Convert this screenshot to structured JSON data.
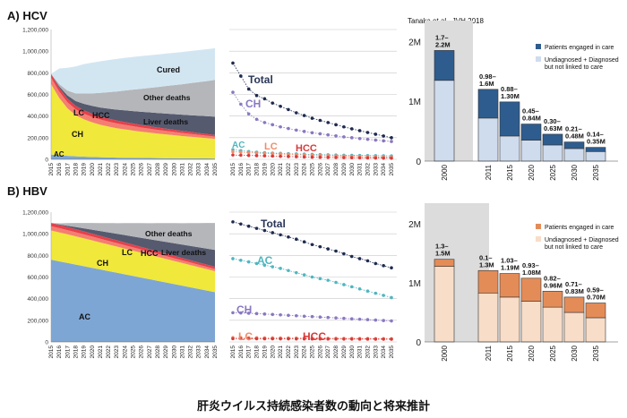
{
  "caption": "肝炎ウイルス持続感染者数の動向と将来推計",
  "colors": {
    "cured": "#d2e6f2",
    "other_deaths": "#b4b6ba",
    "liver_deaths": "#555a6e",
    "hcc": "#e8404a",
    "lc": "#f47e72",
    "ch": "#f0e83a",
    "ac": "#7ea6d4",
    "total_hcv": "#1e2a4e",
    "ch_line": "#8a78c0",
    "ac_line": "#4fb6c0",
    "lc_line": "#f08c6a",
    "hcc_line": "#d83a3a",
    "hcv_engaged": "#2e5c8e",
    "hcv_undiag": "#cfdcee",
    "hbv_engaged": "#e48c58",
    "hbv_undiag": "#f8ddc8",
    "shade": "#dcdcdc"
  },
  "panel_a_title": "A) HCV",
  "panel_b_title": "B) HBV",
  "source_note": "Tanaka et al., JVH 2018",
  "area_labels_hcv": {
    "cured": "Cured",
    "other": "Other deaths",
    "liver": "Liver deaths",
    "lc": "LC",
    "hcc": "HCC",
    "ch": "CH",
    "ac": "AC"
  },
  "area_labels_hbv": {
    "other": "Other deaths",
    "liver": "Liver deaths",
    "lc": "LC",
    "hcc": "HCC",
    "ch": "CH",
    "ac": "AC"
  },
  "line_labels_hcv": {
    "total": "Total",
    "ch": "CH",
    "ac": "AC",
    "lc": "LC",
    "hcc": "HCC"
  },
  "line_labels_hbv": {
    "total": "Total",
    "ac": "AC",
    "ch": "CH",
    "lc": "LC",
    "hcc": "HCC"
  },
  "legend_hcv": {
    "engaged": "Patients engaged in care",
    "undiag_1": "Undiagnosed + Diagnosed",
    "undiag_2": "but not linked to care"
  },
  "legend_hbv": {
    "engaged": "Patients engaged in care",
    "undiag_1": "Undiagnosed + Diagnosed",
    "undiag_2": "but not linked to care"
  },
  "chart_data": [
    {
      "type": "area",
      "title": "A) HCV",
      "x": [
        2015,
        2016,
        2017,
        2018,
        2019,
        2020,
        2021,
        2022,
        2023,
        2024,
        2025,
        2026,
        2027,
        2028,
        2029,
        2030,
        2031,
        2032,
        2033,
        2034,
        2035
      ],
      "yticks": [
        "0",
        "200,000",
        "400,000",
        "600,000",
        "800,000",
        "1,000,000",
        "1,200,000"
      ],
      "ylim": [
        0,
        1200000
      ],
      "series_bottom_to_top": [
        {
          "name": "AC",
          "values": [
            45000,
            38000,
            32000,
            28000,
            25000,
            22000,
            20000,
            18000,
            16000,
            15000,
            14000,
            13000,
            12000,
            11000,
            10500,
            10000,
            9500,
            9000,
            8500,
            8000,
            7500
          ]
        },
        {
          "name": "CH",
          "values": [
            650000,
            530000,
            440000,
            380000,
            345000,
            320000,
            300000,
            285000,
            272000,
            262000,
            252000,
            243000,
            235000,
            227000,
            220000,
            213000,
            206000,
            200000,
            194000,
            188000,
            182000
          ]
        },
        {
          "name": "LC",
          "values": [
            60000,
            58000,
            56000,
            54000,
            52000,
            50000,
            48000,
            46000,
            44000,
            42000,
            40000,
            38000,
            36000,
            34000,
            32000,
            30000,
            28000,
            26000,
            24000,
            22000,
            20000
          ]
        },
        {
          "name": "HCC",
          "values": [
            35000,
            34000,
            33000,
            32000,
            31000,
            30000,
            29000,
            28000,
            27000,
            26000,
            25000,
            24000,
            23000,
            22000,
            21000,
            20000,
            19000,
            18000,
            17000,
            16000,
            15000
          ]
        },
        {
          "name": "Liver deaths",
          "values": [
            0,
            15000,
            30000,
            45000,
            60000,
            72000,
            82000,
            92000,
            100000,
            108000,
            115000,
            122000,
            128000,
            134000,
            140000,
            145000,
            150000,
            155000,
            160000,
            165000,
            170000
          ]
        },
        {
          "name": "Other deaths",
          "values": [
            0,
            20000,
            45000,
            70000,
            95000,
            115000,
            135000,
            152000,
            168000,
            183000,
            198000,
            212000,
            226000,
            240000,
            254000,
            268000,
            282000,
            296000,
            310000,
            324000,
            340000
          ]
        },
        {
          "name": "Cured",
          "values": [
            0,
            145000,
            210000,
            250000,
            272000,
            285000,
            292000,
            297000,
            301000,
            302000,
            303000,
            303000,
            302000,
            301000,
            300000,
            299000,
            298000,
            297000,
            296000,
            295000,
            293000
          ]
        }
      ]
    },
    {
      "type": "line",
      "title": "",
      "x": [
        2015,
        2016,
        2017,
        2018,
        2019,
        2020,
        2021,
        2022,
        2023,
        2024,
        2025,
        2026,
        2027,
        2028,
        2029,
        2030,
        2031,
        2032,
        2033,
        2034,
        2035
      ],
      "ylim": [
        0,
        1200000
      ],
      "series": [
        {
          "name": "Total",
          "values": [
            890000,
            770000,
            650000,
            590000,
            560000,
            520000,
            490000,
            460000,
            430000,
            405000,
            380000,
            360000,
            340000,
            320000,
            300000,
            282000,
            265000,
            248000,
            232000,
            216000,
            200000
          ]
        },
        {
          "name": "CH",
          "values": [
            620000,
            510000,
            420000,
            370000,
            340000,
            320000,
            300000,
            285000,
            270000,
            258000,
            246000,
            236000,
            226000,
            217000,
            208000,
            200000,
            192000,
            185000,
            178000,
            171000,
            165000
          ]
        },
        {
          "name": "AC",
          "values": [
            90000,
            80000,
            72000,
            66000,
            62000,
            58000,
            55000,
            52000,
            50000,
            48000,
            46000,
            44000,
            42000,
            40000,
            38000,
            37000,
            36000,
            35000,
            34000,
            33000,
            32000
          ]
        },
        {
          "name": "LC",
          "values": [
            70000,
            66000,
            62000,
            58000,
            55000,
            52000,
            49000,
            46000,
            43000,
            40000,
            38000,
            36000,
            34000,
            32000,
            30000,
            28000,
            26000,
            24000,
            22000,
            21000,
            20000
          ]
        },
        {
          "name": "HCC",
          "values": [
            40000,
            38000,
            36000,
            34000,
            32000,
            30000,
            28000,
            26000,
            24000,
            22000,
            20000,
            19000,
            18000,
            17000,
            16000,
            15000,
            14000,
            13000,
            12000,
            11000,
            10000
          ]
        }
      ]
    },
    {
      "type": "bar",
      "title": "",
      "categories": [
        "2000",
        "2011",
        "2015",
        "2020",
        "2025",
        "2030",
        "2035"
      ],
      "yticks": [
        "0",
        "1M",
        "2M"
      ],
      "ylim": [
        0,
        2200000
      ],
      "series": [
        {
          "name": "Undiagnosed + Diagnosed but not linked to care",
          "values": [
            1350000,
            720000,
            420000,
            350000,
            270000,
            210000,
            160000
          ]
        },
        {
          "name": "Patients engaged in care",
          "values": [
            500000,
            480000,
            570000,
            270000,
            180000,
            110000,
            70000
          ]
        }
      ],
      "bar_labels": [
        [
          "1.7–",
          "2.2M"
        ],
        [
          "0.98–",
          "1.6M"
        ],
        [
          "0.88–",
          "1.30M"
        ],
        [
          "0.45–",
          "0.84M"
        ],
        [
          "0.30–",
          "0.63M"
        ],
        [
          "0.21–",
          "0.48M"
        ],
        [
          "0.14–",
          "0.35M"
        ]
      ]
    },
    {
      "type": "area",
      "title": "B) HBV",
      "x": [
        2015,
        2016,
        2017,
        2018,
        2019,
        2020,
        2021,
        2022,
        2023,
        2024,
        2025,
        2026,
        2027,
        2028,
        2029,
        2030,
        2031,
        2032,
        2033,
        2034,
        2035
      ],
      "yticks": [
        "0",
        "200,000",
        "400,000",
        "600,000",
        "800,000",
        "1,000,000",
        "1,200,000"
      ],
      "ylim": [
        0,
        1200000
      ],
      "series_bottom_to_top": [
        {
          "name": "AC",
          "values": [
            760000,
            745000,
            730000,
            715000,
            700000,
            685000,
            670000,
            655000,
            640000,
            625000,
            610000,
            595000,
            580000,
            565000,
            550000,
            535000,
            520000,
            505000,
            490000,
            475000,
            460000
          ]
        },
        {
          "name": "CH",
          "values": [
            270000,
            268000,
            265000,
            262000,
            258000,
            254000,
            250000,
            246000,
            242000,
            238000,
            234000,
            230000,
            226000,
            222000,
            218000,
            214000,
            210000,
            206000,
            202000,
            198000,
            194000
          ]
        },
        {
          "name": "LC",
          "values": [
            40000,
            39000,
            38000,
            37000,
            36000,
            35000,
            34000,
            33000,
            32000,
            31000,
            30000,
            29000,
            28000,
            27000,
            26000,
            25000,
            24000,
            23000,
            22000,
            21000,
            20000
          ]
        },
        {
          "name": "HCC",
          "values": [
            30000,
            29500,
            29000,
            28500,
            28000,
            27500,
            27000,
            26500,
            26000,
            25500,
            25000,
            24500,
            24000,
            23500,
            23000,
            22500,
            22000,
            21500,
            21000,
            20500,
            20000
          ]
        },
        {
          "name": "Liver deaths",
          "values": [
            0,
            5000,
            12000,
            20000,
            28000,
            36000,
            44000,
            52000,
            60000,
            68000,
            76000,
            84000,
            92000,
            100000,
            108000,
            116000,
            124000,
            132000,
            140000,
            148000,
            156000
          ]
        },
        {
          "name": "Other deaths",
          "values": [
            0,
            10000,
            25000,
            37000,
            50000,
            62000,
            74000,
            86000,
            98000,
            111000,
            124000,
            136000,
            148000,
            161000,
            174000,
            186000,
            198000,
            211000,
            224000,
            237000,
            250000
          ]
        }
      ]
    },
    {
      "type": "line",
      "title": "",
      "x": [
        2015,
        2016,
        2017,
        2018,
        2019,
        2020,
        2021,
        2022,
        2023,
        2024,
        2025,
        2026,
        2027,
        2028,
        2029,
        2030,
        2031,
        2032,
        2033,
        2034,
        2035
      ],
      "ylim": [
        0,
        1200000
      ],
      "series": [
        {
          "name": "Total",
          "values": [
            1110000,
            1090000,
            1070000,
            1050000,
            1030000,
            1010000,
            990000,
            970000,
            950000,
            925000,
            900000,
            880000,
            860000,
            840000,
            815000,
            790000,
            770000,
            750000,
            725000,
            705000,
            685000
          ]
        },
        {
          "name": "AC",
          "values": [
            770000,
            755000,
            740000,
            725000,
            710000,
            695000,
            680000,
            660000,
            640000,
            620000,
            600000,
            585000,
            570000,
            550000,
            530000,
            510000,
            490000,
            470000,
            450000,
            430000,
            410000
          ]
        },
        {
          "name": "CH",
          "values": [
            270000,
            268000,
            265000,
            262000,
            258000,
            254000,
            250000,
            246000,
            242000,
            238000,
            234000,
            230000,
            226000,
            222000,
            218000,
            214000,
            210000,
            206000,
            202000,
            198000,
            194000
          ]
        },
        {
          "name": "LC",
          "values": [
            40000,
            40000,
            39000,
            39000,
            38000,
            38000,
            37000,
            37000,
            36000,
            36000,
            35000,
            35000,
            34000,
            34000,
            33000,
            33000,
            32000,
            32000,
            31000,
            31000,
            30000
          ]
        },
        {
          "name": "HCC",
          "values": [
            30000,
            30000,
            29500,
            29500,
            29000,
            29000,
            28500,
            28500,
            28000,
            28000,
            27500,
            27500,
            27000,
            27000,
            26500,
            26500,
            26000,
            26000,
            25500,
            25500,
            25000
          ]
        }
      ]
    },
    {
      "type": "bar",
      "title": "",
      "categories": [
        "2000",
        "2011",
        "2015",
        "2020",
        "2025",
        "2030",
        "2035"
      ],
      "yticks": [
        "0",
        "1M",
        "2M"
      ],
      "ylim": [
        0,
        2200000
      ],
      "series": [
        {
          "name": "Undiagnosed + Diagnosed but not linked to care",
          "values": [
            1280000,
            830000,
            760000,
            690000,
            590000,
            500000,
            410000
          ]
        },
        {
          "name": "Patients engaged in care",
          "values": [
            120000,
            380000,
            400000,
            390000,
            270000,
            260000,
            250000
          ]
        }
      ],
      "bar_labels": [
        [
          "1.3–",
          "1.5M"
        ],
        [
          "0.1–",
          "1.3M"
        ],
        [
          "1.03–",
          "1.19M"
        ],
        [
          "0.93–",
          "1.08M"
        ],
        [
          "0.82–",
          "0.96M"
        ],
        [
          "0.71–",
          "0.83M"
        ],
        [
          "0.59–",
          "0.70M"
        ]
      ]
    }
  ]
}
